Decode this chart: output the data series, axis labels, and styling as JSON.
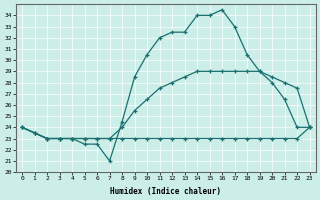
{
  "xlabel": "Humidex (Indice chaleur)",
  "xlim": [
    -0.5,
    23.5
  ],
  "ylim": [
    20,
    35
  ],
  "yticks": [
    20,
    21,
    22,
    23,
    24,
    25,
    26,
    27,
    28,
    29,
    30,
    31,
    32,
    33,
    34
  ],
  "xticks": [
    0,
    1,
    2,
    3,
    4,
    5,
    6,
    7,
    8,
    9,
    10,
    11,
    12,
    13,
    14,
    15,
    16,
    17,
    18,
    19,
    20,
    21,
    22,
    23
  ],
  "bg_color": "#cceee8",
  "line_color": "#1a7070",
  "line1_x": [
    0,
    1,
    2,
    3,
    4,
    5,
    6,
    7,
    8,
    9,
    10,
    11,
    12,
    13,
    14,
    15,
    16,
    17,
    18,
    19,
    20,
    21,
    22,
    23
  ],
  "line1_y": [
    24,
    23.5,
    23,
    23,
    23,
    23,
    23,
    23,
    23,
    23,
    23,
    23,
    23,
    23,
    23,
    23,
    23,
    23,
    23,
    23,
    23,
    23,
    23,
    24
  ],
  "line2_x": [
    0,
    1,
    2,
    3,
    4,
    5,
    6,
    7,
    8,
    9,
    10,
    11,
    12,
    13,
    14,
    15,
    16,
    17,
    18,
    19,
    20,
    21,
    22,
    23
  ],
  "line2_y": [
    24,
    23.5,
    23,
    23,
    23,
    22.5,
    22.5,
    21,
    24.5,
    28.5,
    30.5,
    32,
    32.5,
    32.5,
    34,
    34,
    34.5,
    33,
    30.5,
    29,
    28,
    26.5,
    24,
    24
  ],
  "line3_x": [
    0,
    1,
    2,
    3,
    4,
    5,
    6,
    7,
    8,
    9,
    10,
    11,
    12,
    13,
    14,
    15,
    16,
    17,
    18,
    19,
    20,
    21,
    22,
    23
  ],
  "line3_y": [
    24,
    23.5,
    23,
    23,
    23,
    23,
    23,
    23,
    24,
    25.5,
    26.5,
    27.5,
    28,
    28.5,
    29,
    29,
    29,
    29,
    29,
    29,
    28.5,
    28,
    27.5,
    24
  ]
}
